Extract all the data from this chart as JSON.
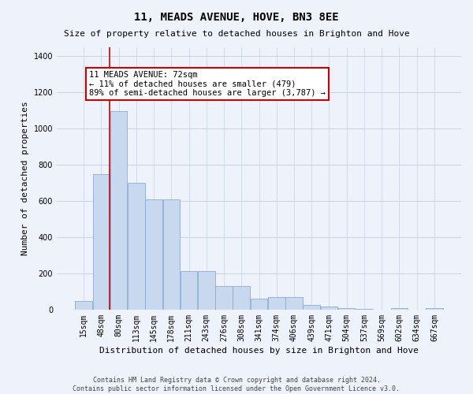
{
  "title": "11, MEADS AVENUE, HOVE, BN3 8EE",
  "subtitle": "Size of property relative to detached houses in Brighton and Hove",
  "xlabel": "Distribution of detached houses by size in Brighton and Hove",
  "ylabel": "Number of detached properties",
  "footer_line1": "Contains HM Land Registry data © Crown copyright and database right 2024.",
  "footer_line2": "Contains public sector information licensed under the Open Government Licence v3.0.",
  "categories": [
    "15sqm",
    "48sqm",
    "80sqm",
    "113sqm",
    "145sqm",
    "178sqm",
    "211sqm",
    "243sqm",
    "276sqm",
    "308sqm",
    "341sqm",
    "374sqm",
    "406sqm",
    "439sqm",
    "471sqm",
    "504sqm",
    "537sqm",
    "569sqm",
    "602sqm",
    "634sqm",
    "667sqm"
  ],
  "values": [
    48,
    748,
    1097,
    700,
    610,
    610,
    215,
    215,
    132,
    132,
    60,
    70,
    70,
    28,
    18,
    10,
    5,
    0,
    10,
    0,
    10
  ],
  "bar_color": "#c8d8ef",
  "bar_edge_color": "#8aadd4",
  "grid_color": "#c8d2e4",
  "vline_color": "#cc0000",
  "vline_x_index": 1,
  "annotation_text": "11 MEADS AVENUE: 72sqm\n← 11% of detached houses are smaller (479)\n89% of semi-detached houses are larger (3,787) →",
  "annotation_box_color": "white",
  "annotation_box_edge": "#cc0000",
  "ylim": [
    0,
    1450
  ],
  "yticks": [
    0,
    200,
    400,
    600,
    800,
    1000,
    1200,
    1400
  ],
  "background_color": "#eef2fa",
  "title_fontsize": 10,
  "subtitle_fontsize": 8,
  "ylabel_fontsize": 8,
  "xlabel_fontsize": 8,
  "tick_fontsize": 7,
  "footer_fontsize": 6
}
